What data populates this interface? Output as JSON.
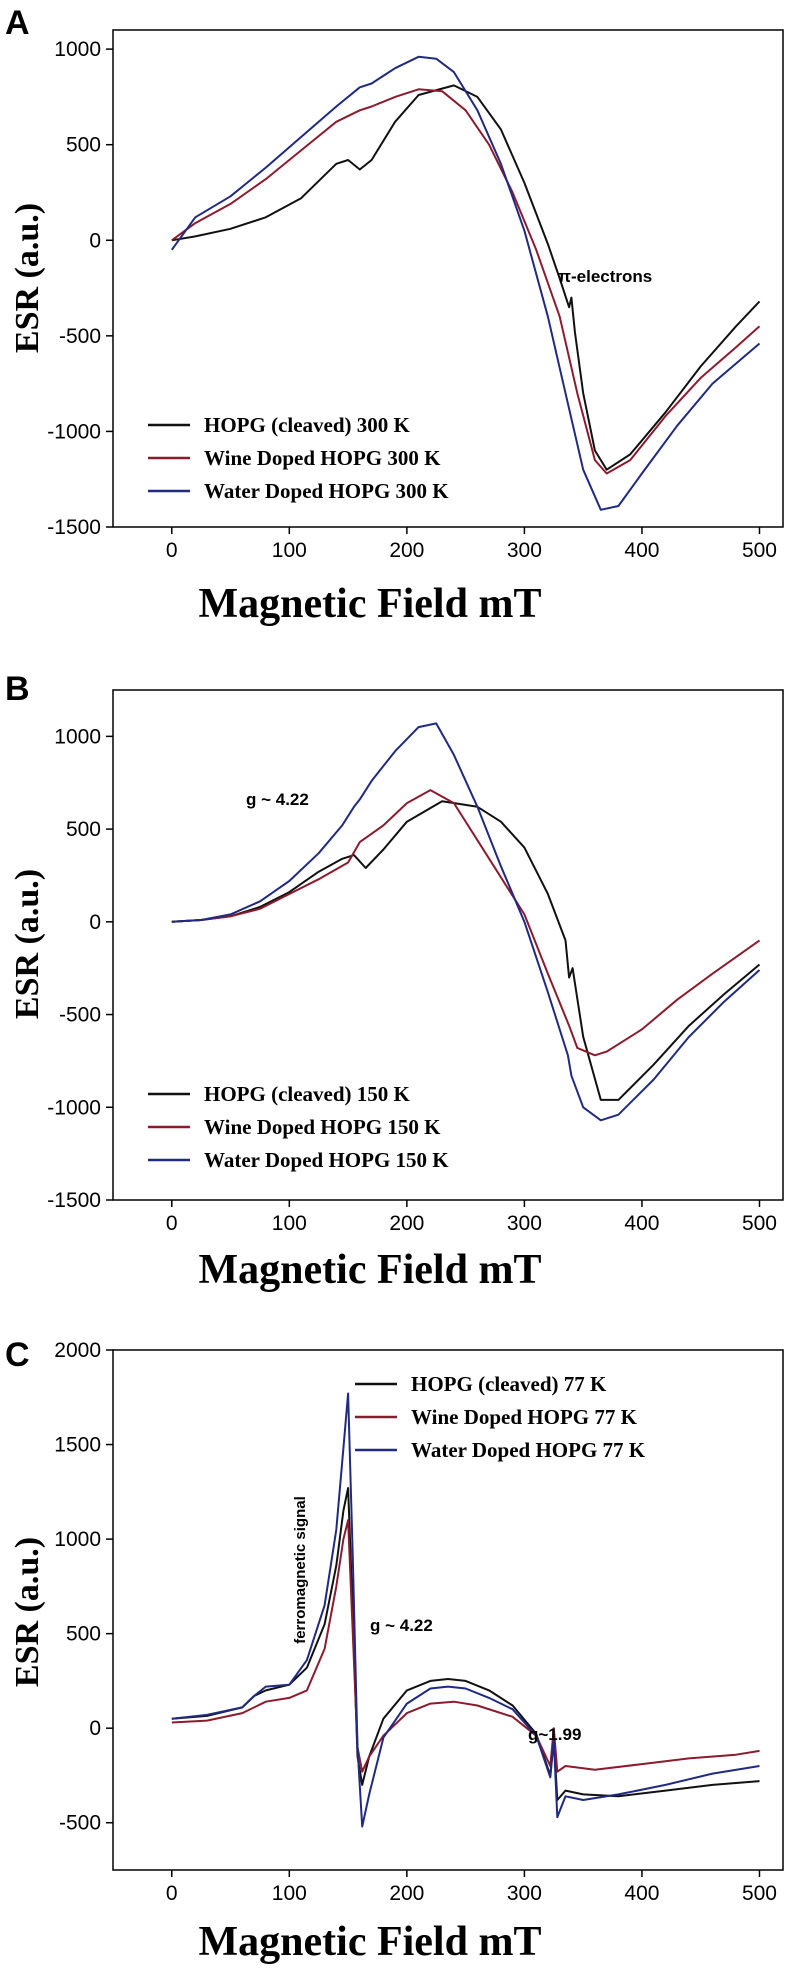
{
  "chart_data": [
    {
      "panel": "A",
      "type": "line",
      "xlabel": "Magnetic Field mT",
      "ylabel": "ESR (a.u.)",
      "xlim": [
        -50,
        520
      ],
      "ylim": [
        -1500,
        1100
      ],
      "xticks": [
        0,
        100,
        200,
        300,
        400,
        500
      ],
      "yticks": [
        -1500,
        -1000,
        -500,
        0,
        500,
        1000
      ],
      "legend_position": "bottom-left",
      "grid": false,
      "annotations": [
        {
          "text": "π-electrons",
          "x": 350,
          "y": -220
        }
      ],
      "series": [
        {
          "name": "HOPG (cleaved) 300 K",
          "color": "#111111",
          "x": [
            0,
            20,
            50,
            80,
            110,
            140,
            150,
            160,
            170,
            190,
            210,
            240,
            260,
            280,
            300,
            320,
            330,
            338,
            340,
            343,
            350,
            360,
            370,
            390,
            420,
            450,
            480,
            500
          ],
          "y": [
            0,
            20,
            60,
            120,
            220,
            400,
            420,
            370,
            420,
            620,
            760,
            810,
            750,
            580,
            300,
            -20,
            -200,
            -350,
            -300,
            -480,
            -800,
            -1100,
            -1200,
            -1120,
            -900,
            -660,
            -450,
            -320
          ]
        },
        {
          "name": "Wine Doped HOPG 300 K",
          "color": "#8a1c2e",
          "x": [
            0,
            20,
            50,
            80,
            110,
            140,
            160,
            170,
            190,
            210,
            230,
            250,
            270,
            290,
            310,
            330,
            345,
            360,
            370,
            390,
            420,
            450,
            480,
            500
          ],
          "y": [
            0,
            90,
            190,
            320,
            470,
            620,
            680,
            700,
            750,
            790,
            780,
            680,
            500,
            250,
            -50,
            -400,
            -800,
            -1150,
            -1220,
            -1150,
            -920,
            -720,
            -560,
            -450
          ]
        },
        {
          "name": "Water Doped HOPG 300 K",
          "color": "#1f2a80",
          "x": [
            0,
            20,
            50,
            80,
            110,
            140,
            160,
            170,
            190,
            210,
            225,
            240,
            260,
            280,
            300,
            320,
            335,
            350,
            365,
            380,
            400,
            430,
            460,
            500
          ],
          "y": [
            -50,
            120,
            230,
            380,
            540,
            700,
            800,
            820,
            900,
            960,
            950,
            880,
            680,
            400,
            50,
            -400,
            -800,
            -1200,
            -1410,
            -1390,
            -1220,
            -970,
            -750,
            -540
          ]
        }
      ]
    },
    {
      "panel": "B",
      "type": "line",
      "xlabel": "Magnetic Field mT",
      "ylabel": "ESR (a.u.)",
      "xlim": [
        -50,
        520
      ],
      "ylim": [
        -1500,
        1250
      ],
      "xticks": [
        0,
        100,
        200,
        300,
        400,
        500
      ],
      "yticks": [
        -1500,
        -1000,
        -500,
        0,
        500,
        1000
      ],
      "legend_position": "bottom-left",
      "grid": false,
      "annotations": [
        {
          "text": "g ~ 4.22",
          "x": 95,
          "y": 700
        }
      ],
      "series": [
        {
          "name": "HOPG (cleaved) 150 K",
          "color": "#111111",
          "x": [
            0,
            25,
            50,
            75,
            100,
            125,
            145,
            155,
            165,
            180,
            200,
            230,
            260,
            280,
            300,
            320,
            335,
            338,
            341,
            350,
            365,
            380,
            410,
            440,
            470,
            500
          ],
          "y": [
            0,
            10,
            30,
            80,
            160,
            270,
            340,
            360,
            290,
            390,
            540,
            650,
            620,
            540,
            400,
            150,
            -100,
            -300,
            -250,
            -620,
            -960,
            -960,
            -770,
            -560,
            -390,
            -230
          ]
        },
        {
          "name": "Wine Doped HOPG 150 K",
          "color": "#8a1c2e",
          "x": [
            0,
            25,
            50,
            75,
            100,
            125,
            150,
            160,
            180,
            200,
            220,
            240,
            260,
            280,
            300,
            320,
            338,
            345,
            360,
            370,
            400,
            430,
            460,
            500
          ],
          "y": [
            0,
            10,
            30,
            70,
            150,
            230,
            320,
            430,
            520,
            640,
            710,
            640,
            440,
            240,
            40,
            -280,
            -560,
            -680,
            -720,
            -700,
            -580,
            -420,
            -280,
            -100
          ]
        },
        {
          "name": "Water Doped HOPG 150 K",
          "color": "#1f2a80",
          "x": [
            0,
            25,
            50,
            75,
            100,
            125,
            145,
            155,
            160,
            170,
            190,
            210,
            225,
            240,
            260,
            280,
            300,
            320,
            337,
            340,
            350,
            365,
            380,
            410,
            440,
            470,
            500
          ],
          "y": [
            0,
            10,
            40,
            110,
            220,
            370,
            520,
            620,
            660,
            760,
            920,
            1050,
            1070,
            900,
            620,
            300,
            0,
            -380,
            -720,
            -830,
            -1000,
            -1070,
            -1040,
            -850,
            -620,
            -430,
            -260
          ]
        }
      ]
    },
    {
      "panel": "C",
      "type": "line",
      "xlabel": "Magnetic Field mT",
      "ylabel": "ESR (a.u.)",
      "xlim": [
        -50,
        520
      ],
      "ylim": [
        -750,
        2000
      ],
      "xticks": [
        0,
        100,
        200,
        300,
        400,
        500
      ],
      "yticks": [
        -500,
        0,
        500,
        1000,
        1500,
        2000
      ],
      "legend_position": "top-right",
      "grid": false,
      "annotations": [
        {
          "text": "ferromagnetic signal",
          "x": 108,
          "y": 1150,
          "vertical": true
        },
        {
          "text": "g ~ 4.22",
          "x": 165,
          "y": 600
        },
        {
          "text": "g~1.99",
          "x": 312,
          "y": 210
        }
      ],
      "series": [
        {
          "name": "HOPG (cleaved)  77 K",
          "color": "#111111",
          "x": [
            0,
            30,
            60,
            70,
            80,
            100,
            115,
            130,
            140,
            146,
            150,
            154,
            158,
            162,
            168,
            180,
            200,
            220,
            235,
            250,
            270,
            290,
            310,
            322,
            325,
            328,
            335,
            350,
            380,
            420,
            460,
            500
          ],
          "y": [
            50,
            65,
            110,
            170,
            200,
            230,
            320,
            550,
            860,
            1150,
            1270,
            600,
            -150,
            -300,
            -150,
            50,
            200,
            250,
            260,
            250,
            200,
            120,
            -30,
            -250,
            -50,
            -380,
            -330,
            -350,
            -360,
            -330,
            -300,
            -280
          ]
        },
        {
          "name": "Wine Doped HOPG 77 K",
          "color": "#8a1c2e",
          "x": [
            0,
            30,
            60,
            80,
            100,
            115,
            130,
            140,
            146,
            150,
            154,
            158,
            162,
            168,
            180,
            200,
            220,
            240,
            260,
            290,
            310,
            322,
            325,
            328,
            335,
            360,
            400,
            440,
            480,
            500
          ],
          "y": [
            30,
            40,
            80,
            140,
            160,
            200,
            420,
            750,
            1000,
            1100,
            500,
            -100,
            -230,
            -150,
            -40,
            80,
            130,
            140,
            120,
            60,
            -40,
            -200,
            0,
            -230,
            -200,
            -220,
            -190,
            -160,
            -140,
            -120
          ]
        },
        {
          "name": "Water Doped HOPG 77 K",
          "color": "#1f2a80",
          "x": [
            0,
            30,
            60,
            70,
            80,
            100,
            115,
            130,
            140,
            146,
            150,
            154,
            158,
            162,
            168,
            180,
            200,
            220,
            235,
            250,
            270,
            290,
            310,
            322,
            325,
            328,
            335,
            350,
            380,
            420,
            460,
            500
          ],
          "y": [
            50,
            70,
            110,
            170,
            220,
            230,
            360,
            650,
            1050,
            1480,
            1770,
            900,
            -100,
            -520,
            -350,
            -50,
            130,
            210,
            220,
            210,
            160,
            100,
            -40,
            -260,
            -60,
            -470,
            -360,
            -380,
            -350,
            -300,
            -240,
            -200
          ]
        }
      ]
    }
  ]
}
